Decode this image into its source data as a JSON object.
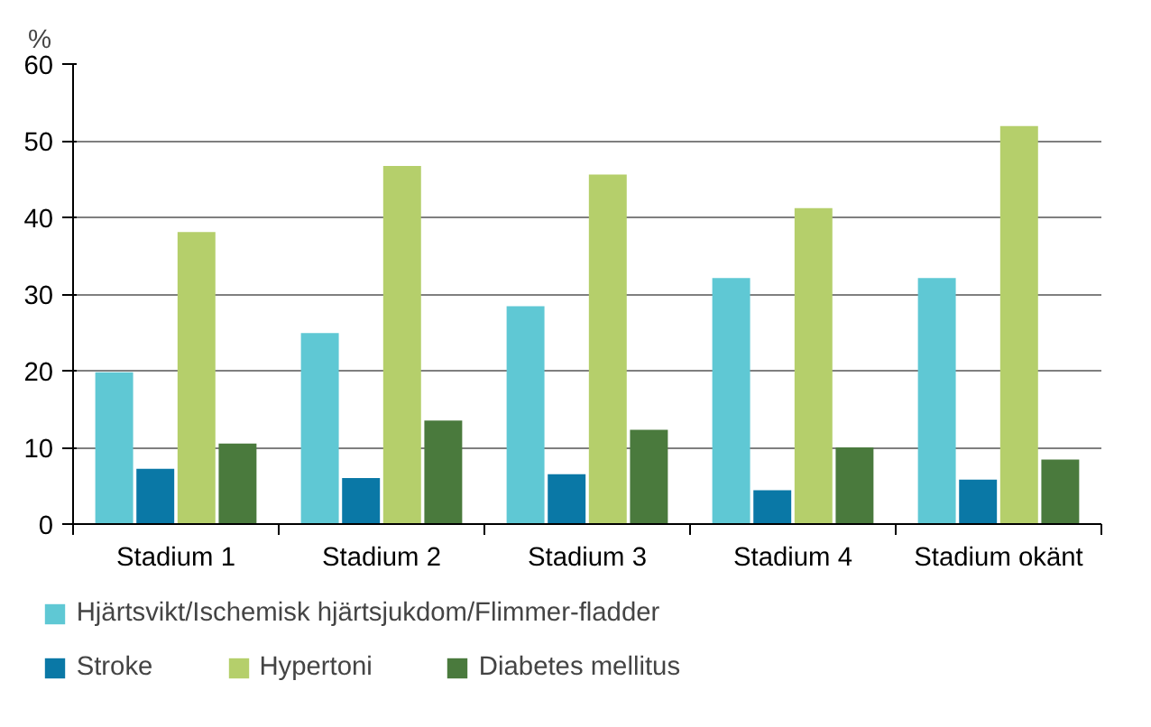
{
  "chart_data": {
    "type": "bar",
    "ylabel": "%",
    "categories": [
      "Stadium 1",
      "Stadium 2",
      "Stadium 3",
      "Stadium 4",
      "Stadium okänt"
    ],
    "series": [
      {
        "name": "Hjärtsvikt/Ischemisk hjärtsjukdom/Flimmer-fladder",
        "color": "#5fc8d4",
        "values": [
          19.8,
          24.9,
          28.4,
          32.1,
          32.1
        ]
      },
      {
        "name": "Stroke",
        "color": "#0a78a6",
        "values": [
          7.2,
          6.0,
          6.5,
          4.4,
          5.8
        ]
      },
      {
        "name": "Hypertoni",
        "color": "#b5cf6b",
        "values": [
          38.1,
          46.7,
          45.6,
          41.2,
          51.9
        ]
      },
      {
        "name": "Diabetes mellitus",
        "color": "#4a7a3d",
        "values": [
          10.5,
          13.5,
          12.3,
          10.0,
          8.4
        ]
      }
    ],
    "ylim": [
      0,
      60
    ],
    "yticks": [
      0,
      10,
      20,
      30,
      40,
      50,
      60
    ],
    "grid": "y",
    "legend": "bottom"
  }
}
